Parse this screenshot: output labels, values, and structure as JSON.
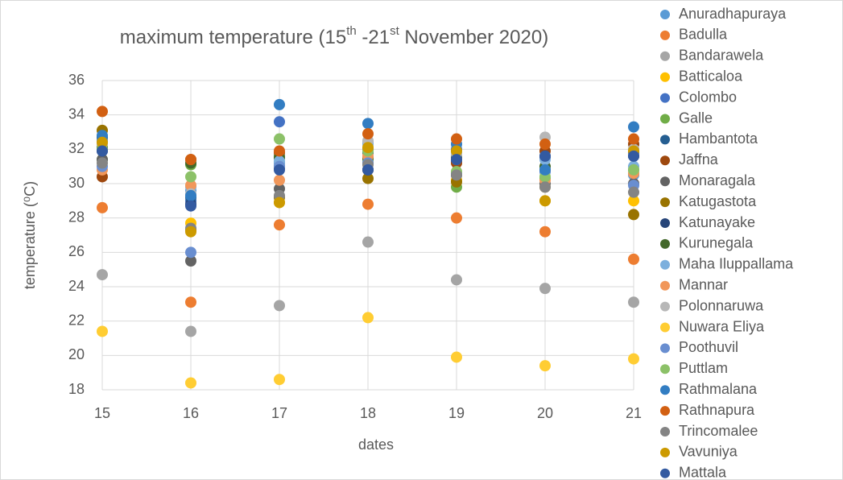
{
  "chart_data": {
    "type": "scatter",
    "title": [
      {
        "text": "maximum temperature (15"
      },
      {
        "text": "th",
        "sup": true
      },
      {
        "text": " -21"
      },
      {
        "text": "st",
        "sup": true
      },
      {
        "text": " November 2020)"
      }
    ],
    "x_label": "dates",
    "y_label": "temperature (⁰C)",
    "x": [
      15,
      16,
      17,
      18,
      19,
      20,
      21
    ],
    "xlim": [
      15,
      21
    ],
    "xticks": [
      15,
      16,
      17,
      18,
      19,
      20,
      21
    ],
    "ylim": [
      18,
      36
    ],
    "yticks": [
      18,
      20,
      22,
      24,
      26,
      28,
      30,
      32,
      34,
      36
    ],
    "grid": true,
    "legend": "right",
    "series": [
      {
        "name": "Anuradhapuraya",
        "color": "#5B9BD5",
        "values": [
          32.5,
          29.6,
          31.2,
          32.4,
          31.5,
          30.7,
          30.5
        ]
      },
      {
        "name": "Badulla",
        "color": "#ED7D31",
        "values": [
          28.6,
          23.1,
          27.6,
          28.8,
          28.0,
          27.2,
          25.6
        ]
      },
      {
        "name": "Bandarawela",
        "color": "#A5A5A5",
        "values": [
          24.7,
          21.4,
          22.9,
          26.6,
          24.4,
          23.9,
          23.1
        ]
      },
      {
        "name": "Batticaloa",
        "color": "#FFC000",
        "values": [
          32.2,
          27.7,
          28.9,
          31.8,
          30.2,
          29.0,
          29.0
        ]
      },
      {
        "name": "Colombo",
        "color": "#4472C4",
        "values": [
          32.0,
          29.0,
          33.6,
          32.0,
          32.0,
          31.5,
          31.8
        ]
      },
      {
        "name": "Galle",
        "color": "#70AD47",
        "values": [
          31.4,
          31.1,
          31.6,
          31.4,
          29.8,
          30.3,
          30.8
        ]
      },
      {
        "name": "Hambantota",
        "color": "#255E91",
        "values": [
          32.7,
          29.2,
          31.0,
          31.8,
          31.3,
          30.8,
          31.9
        ]
      },
      {
        "name": "Jaffna",
        "color": "#9E480E",
        "values": [
          30.4,
          31.4,
          31.8,
          30.8,
          31.2,
          31.9,
          32.3
        ]
      },
      {
        "name": "Monaragala",
        "color": "#636363",
        "values": [
          31.4,
          25.5,
          29.7,
          31.2,
          30.5,
          30.0,
          30.0
        ]
      },
      {
        "name": "Katugastota",
        "color": "#997300",
        "values": [
          33.1,
          27.3,
          29.2,
          30.3,
          30.1,
          29.8,
          28.2
        ]
      },
      {
        "name": "Katunayake",
        "color": "#264478",
        "values": [
          31.9,
          28.8,
          30.9,
          30.8,
          31.5,
          31.6,
          31.6
        ]
      },
      {
        "name": "Kurunegala",
        "color": "#43682B",
        "values": [
          32.1,
          31.2,
          31.5,
          31.5,
          31.6,
          31.0,
          32.0
        ]
      },
      {
        "name": "Maha Iluppallama",
        "color": "#7CAFDD",
        "values": [
          32.4,
          29.8,
          31.3,
          32.3,
          31.8,
          31.4,
          31.0
        ]
      },
      {
        "name": "Mannar",
        "color": "#F1975A",
        "values": [
          30.8,
          29.9,
          30.2,
          31.6,
          31.4,
          30.2,
          30.6
        ]
      },
      {
        "name": "Polonnaruwa",
        "color": "#B7B7B7",
        "values": [
          32.3,
          29.4,
          31.0,
          32.5,
          31.7,
          32.7,
          32.0
        ]
      },
      {
        "name": "Nuwara Eliya",
        "color": "#FFCD33",
        "values": [
          21.4,
          18.4,
          18.6,
          22.2,
          19.9,
          19.4,
          19.8
        ]
      },
      {
        "name": "Poothuvil",
        "color": "#698ED0",
        "values": [
          31.0,
          26.0,
          31.0,
          31.2,
          30.6,
          30.7,
          29.9
        ]
      },
      {
        "name": "Puttlam",
        "color": "#8CC168",
        "values": [
          32.0,
          30.4,
          32.6,
          31.9,
          30.7,
          30.4,
          30.8
        ]
      },
      {
        "name": "Rathmalana",
        "color": "#327DC2",
        "values": [
          32.8,
          29.3,
          34.6,
          33.5,
          32.3,
          30.8,
          33.3
        ]
      },
      {
        "name": "Rathnapura",
        "color": "#D26012",
        "values": [
          34.2,
          31.4,
          31.9,
          32.9,
          32.6,
          32.3,
          32.6
        ]
      },
      {
        "name": "Trincomalee",
        "color": "#848484",
        "values": [
          31.2,
          27.4,
          29.3,
          31.1,
          30.5,
          29.8,
          29.5
        ]
      },
      {
        "name": "Vavuniya",
        "color": "#CC9A00",
        "values": [
          32.4,
          27.2,
          28.9,
          32.1,
          31.9,
          29.0,
          31.9
        ]
      },
      {
        "name": "Mattala",
        "color": "#335AA1",
        "values": [
          31.9,
          28.7,
          30.8,
          30.8,
          31.4,
          31.6,
          31.6
        ]
      }
    ]
  }
}
